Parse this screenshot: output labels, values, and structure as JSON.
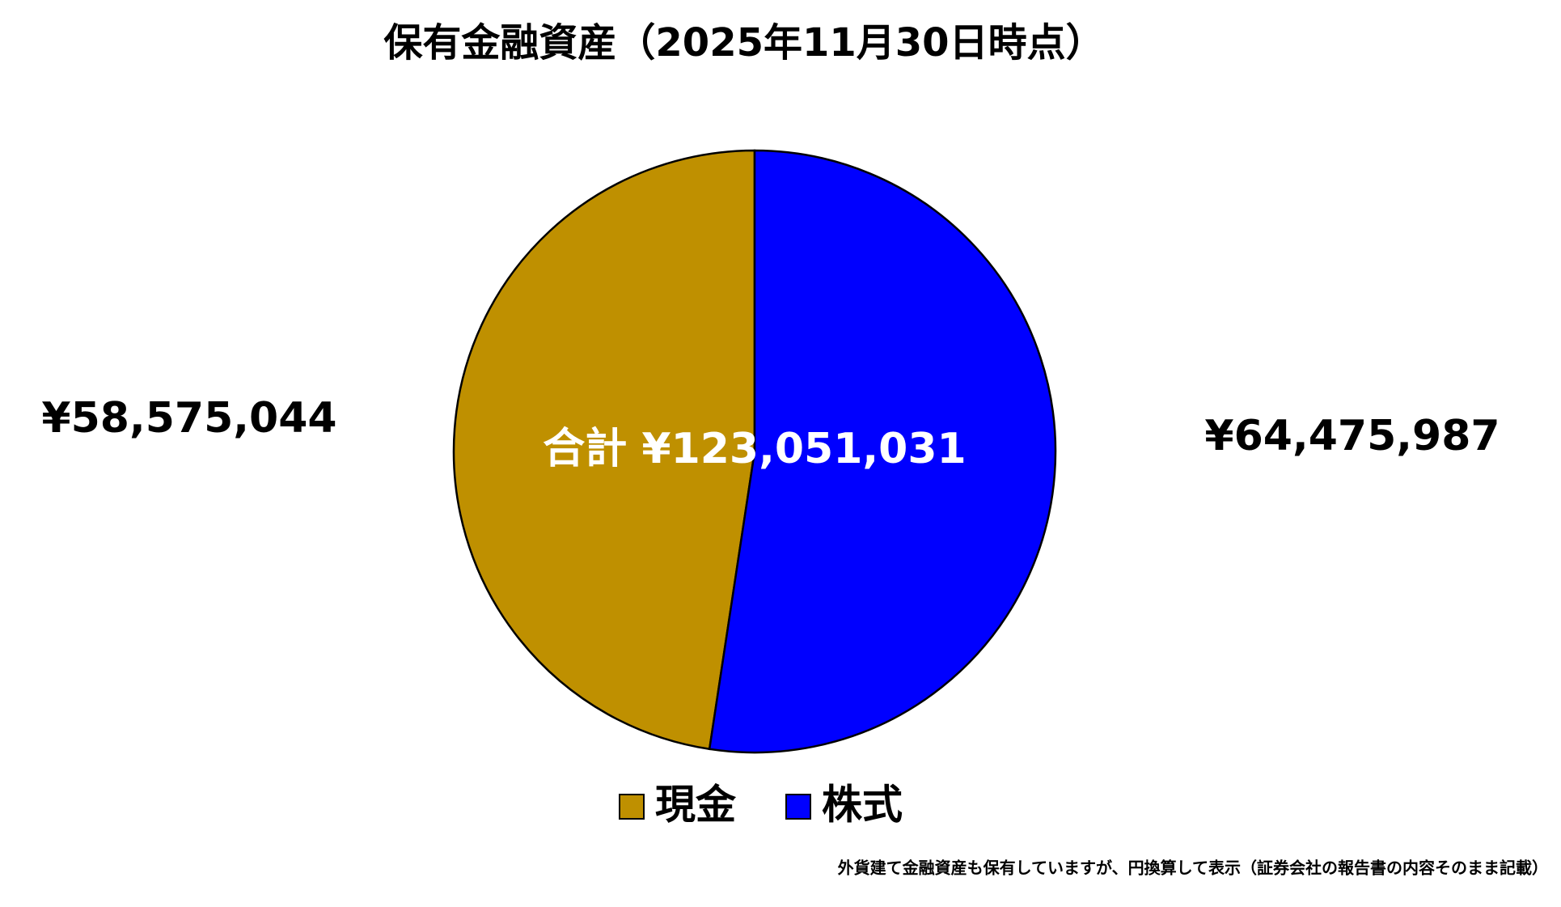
{
  "chart_data": {
    "type": "pie",
    "title": "保有金融資産（2025年11月30日時点）",
    "categories": [
      "現金",
      "株式"
    ],
    "values": [
      58575044,
      64475987
    ],
    "value_labels": [
      "¥58,575,044",
      "¥64,475,987"
    ],
    "colors": [
      "#bf9000",
      "#0000ff"
    ],
    "center_label": "合計 ¥123,051,031",
    "startangle": 90,
    "counterclock": true,
    "legend": "bottom",
    "footnote": "外貨建て金融資産も保有していますが、円換算して表示（証券会社の報告書の内容そのまま記載）"
  }
}
